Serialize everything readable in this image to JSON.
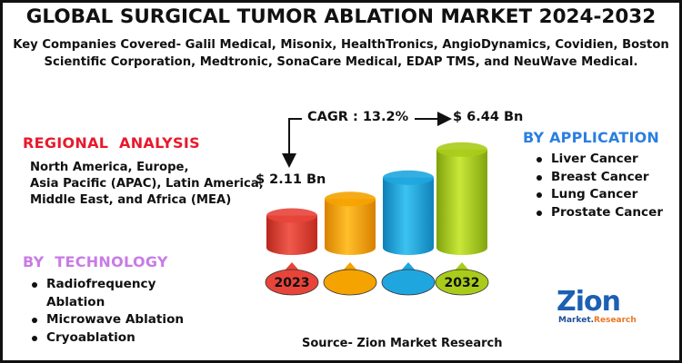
{
  "title": "GLOBAL SURGICAL TUMOR ABLATION MARKET 2024-2032",
  "subtitle": "Key Companies Covered- Galil Medical, Misonix, HealthTronics, AngioDynamics, Covidien, Boston Scientific Corporation, Medtronic, SonaCare Medical, EDAP TMS, and NeuWave Medical.",
  "regional": {
    "heading": "REGIONAL  ANALYSIS",
    "text": "North America, Europe,\n Asia Pacific (APAC), Latin America, Middle East, and Africa (MEA)"
  },
  "technology": {
    "heading": "BY  TECHNOLOGY",
    "items": [
      "Radiofrequency Ablation",
      "Microwave Ablation",
      "Cryoablation"
    ]
  },
  "application": {
    "heading": "BY APPLICATION",
    "items": [
      "Liver Cancer",
      "Breast Cancer",
      "Lung Cancer",
      "Prostate Cancer"
    ]
  },
  "source": "Source- Zion Market Research",
  "logo": {
    "name": "Zion",
    "sub_a": "Market.",
    "sub_b": "Research"
  },
  "colors": {
    "accent_red": "#e8192c",
    "accent_purple": "#c97be6",
    "accent_blue": "#2b7fe0"
  },
  "chart_data": {
    "type": "bar",
    "title": "",
    "categories": [
      "2023",
      "",
      "",
      "2032"
    ],
    "values": [
      2.11,
      3.2,
      4.6,
      6.44
    ],
    "labeled": [
      "$ 2.11 Bn",
      "",
      "",
      "$ 6.44 Bn"
    ],
    "cagr_label": "CAGR : 13.2%",
    "bar_colors": [
      "#e8443a",
      "#f5a300",
      "#1fa6df",
      "#a9cc1a"
    ],
    "ylim": [
      0,
      7
    ],
    "xlabel": "",
    "ylabel": ""
  }
}
